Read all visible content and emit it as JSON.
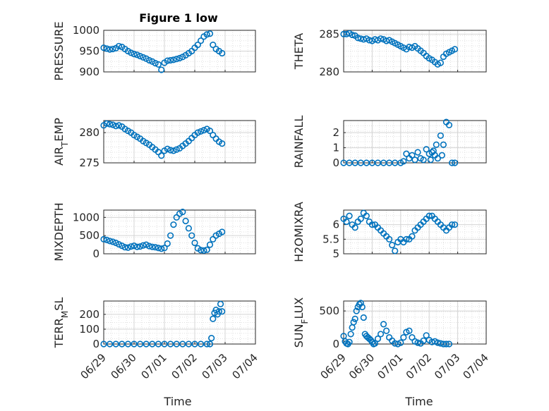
{
  "figure_title": "Figure 1 low",
  "colors": {
    "marker": "#0072BD",
    "axis": "#262626",
    "grid": "#d0d0d0"
  },
  "chart_data": [
    {
      "type": "scatter",
      "ylabel": "PRESSURE",
      "ylabel_html": "PRESSURE",
      "yticks": [
        900,
        950,
        1000
      ],
      "ylim": [
        900,
        1000
      ],
      "xticks": [],
      "xlim": [
        0,
        5
      ],
      "grid": true,
      "title": "Figure 1 low",
      "x": [
        0,
        0.1,
        0.2,
        0.3,
        0.4,
        0.5,
        0.6,
        0.7,
        0.8,
        0.9,
        1.0,
        1.1,
        1.2,
        1.3,
        1.4,
        1.5,
        1.6,
        1.7,
        1.8,
        1.9,
        2.0,
        2.1,
        2.2,
        2.3,
        2.4,
        2.5,
        2.6,
        2.7,
        2.8,
        2.9,
        3.0,
        3.1,
        3.2,
        3.3,
        3.4,
        3.5,
        3.6,
        3.7,
        3.8,
        3.9
      ],
      "y": [
        958,
        956,
        954,
        955,
        957,
        962,
        960,
        955,
        950,
        946,
        943,
        941,
        938,
        935,
        932,
        928,
        925,
        921,
        918,
        905,
        922,
        927,
        928,
        929,
        931,
        933,
        936,
        940,
        945,
        950,
        958,
        965,
        975,
        985,
        990,
        992,
        965,
        955,
        950,
        945
      ]
    },
    {
      "type": "scatter",
      "ylabel": "THETA",
      "yticks": [
        280,
        285
      ],
      "ylim": [
        280,
        285.5
      ],
      "xticks": [],
      "xlim": [
        0,
        5
      ],
      "grid": true,
      "x": [
        0,
        0.1,
        0.2,
        0.3,
        0.4,
        0.5,
        0.6,
        0.7,
        0.8,
        0.9,
        1.0,
        1.1,
        1.2,
        1.3,
        1.4,
        1.5,
        1.6,
        1.7,
        1.8,
        1.9,
        2.0,
        2.1,
        2.2,
        2.3,
        2.4,
        2.5,
        2.6,
        2.7,
        2.8,
        2.9,
        3.0,
        3.1,
        3.2,
        3.3,
        3.4,
        3.5,
        3.6,
        3.7,
        3.8,
        3.9
      ],
      "y": [
        285,
        285,
        285.1,
        284.9,
        284.8,
        284.5,
        284.4,
        284.3,
        284.4,
        284.2,
        284.1,
        284.3,
        284.2,
        284.4,
        284.3,
        284.1,
        284.2,
        284,
        283.8,
        283.6,
        283.4,
        283.2,
        283,
        283.3,
        283.2,
        283.4,
        283.1,
        282.8,
        282.5,
        282.1,
        281.8,
        281.6,
        281.3,
        281,
        281.2,
        282,
        282.4,
        282.6,
        282.8,
        283
      ]
    },
    {
      "type": "scatter",
      "ylabel": "AIR_TEMP",
      "ylabel_html": "AIR<tspan baseline-shift='sub' font-size='12'>T</tspan>EMP",
      "yticks": [
        275,
        280
      ],
      "ylim": [
        275,
        282
      ],
      "xticks": [],
      "xlim": [
        0,
        5
      ],
      "grid": true,
      "x": [
        0,
        0.1,
        0.2,
        0.3,
        0.4,
        0.5,
        0.6,
        0.7,
        0.8,
        0.9,
        1.0,
        1.1,
        1.2,
        1.3,
        1.4,
        1.5,
        1.6,
        1.7,
        1.8,
        1.9,
        2.0,
        2.1,
        2.2,
        2.3,
        2.4,
        2.5,
        2.6,
        2.7,
        2.8,
        2.9,
        3.0,
        3.1,
        3.2,
        3.3,
        3.4,
        3.5,
        3.6,
        3.7,
        3.8,
        3.9
      ],
      "y": [
        281.2,
        281.5,
        281.4,
        281.3,
        281.1,
        281.2,
        281,
        280.6,
        280.3,
        280,
        279.6,
        279.3,
        279,
        278.6,
        278.3,
        278,
        277.6,
        277.2,
        276.8,
        276.2,
        277,
        277.3,
        277.1,
        277,
        277.2,
        277.4,
        277.8,
        278.2,
        278.6,
        279.1,
        279.6,
        280,
        280.2,
        280.4,
        280.6,
        280.3,
        279.6,
        279,
        278.5,
        278.2
      ]
    },
    {
      "type": "scatter",
      "ylabel": "RAINFALL",
      "yticks": [
        0,
        1,
        2
      ],
      "ylim": [
        0,
        2.8
      ],
      "xticks": [],
      "xlim": [
        0,
        5
      ],
      "grid": true,
      "x": [
        0,
        0.2,
        0.4,
        0.6,
        0.8,
        1.0,
        1.2,
        1.4,
        1.6,
        1.8,
        2.0,
        2.1,
        2.2,
        2.3,
        2.4,
        2.5,
        2.6,
        2.7,
        2.8,
        2.9,
        3.0,
        3.05,
        3.1,
        3.15,
        3.2,
        3.25,
        3.3,
        3.4,
        3.45,
        3.5,
        3.6,
        3.7,
        3.8,
        3.9
      ],
      "y": [
        0,
        0,
        0,
        0,
        0,
        0,
        0,
        0,
        0,
        0,
        0,
        0.1,
        0.6,
        0.3,
        0.5,
        0.2,
        0.7,
        0.3,
        0.2,
        0.9,
        0.6,
        0.2,
        0.7,
        0.8,
        0.5,
        1.2,
        0.3,
        1.8,
        0.5,
        1.2,
        2.7,
        2.5,
        0,
        0
      ]
    },
    {
      "type": "scatter",
      "ylabel": "MIXDEPTH",
      "yticks": [
        0,
        500,
        1000
      ],
      "ylim": [
        0,
        1200
      ],
      "xticks": [],
      "xlim": [
        0,
        5
      ],
      "grid": true,
      "x": [
        0,
        0.1,
        0.2,
        0.3,
        0.4,
        0.5,
        0.6,
        0.7,
        0.8,
        0.9,
        1.0,
        1.1,
        1.2,
        1.3,
        1.4,
        1.5,
        1.6,
        1.7,
        1.8,
        1.9,
        2.0,
        2.1,
        2.2,
        2.3,
        2.4,
        2.5,
        2.6,
        2.7,
        2.8,
        2.9,
        3.0,
        3.1,
        3.2,
        3.3,
        3.4,
        3.5,
        3.6,
        3.7,
        3.8,
        3.9
      ],
      "y": [
        400,
        380,
        350,
        330,
        300,
        260,
        220,
        180,
        170,
        200,
        220,
        190,
        200,
        230,
        250,
        210,
        190,
        180,
        160,
        140,
        160,
        280,
        500,
        800,
        1000,
        1100,
        1150,
        900,
        700,
        500,
        300,
        150,
        100,
        90,
        110,
        250,
        400,
        500,
        550,
        600
      ]
    },
    {
      "type": "scatter",
      "ylabel": "H2OMIXRA",
      "yticks": [
        5,
        5.5,
        6
      ],
      "ylim": [
        5,
        6.5
      ],
      "xticks": [],
      "xlim": [
        0,
        5
      ],
      "grid": true,
      "x": [
        0,
        0.1,
        0.2,
        0.3,
        0.4,
        0.5,
        0.6,
        0.7,
        0.8,
        0.9,
        1.0,
        1.1,
        1.2,
        1.3,
        1.4,
        1.5,
        1.6,
        1.7,
        1.8,
        1.9,
        2.0,
        2.1,
        2.2,
        2.3,
        2.4,
        2.5,
        2.6,
        2.7,
        2.8,
        2.9,
        3.0,
        3.1,
        3.2,
        3.3,
        3.4,
        3.5,
        3.6,
        3.7,
        3.8,
        3.9
      ],
      "y": [
        6.2,
        6.1,
        6.3,
        6.0,
        5.9,
        6.1,
        6.2,
        6.4,
        6.3,
        6.1,
        6.0,
        6.0,
        5.9,
        5.8,
        5.7,
        5.6,
        5.5,
        5.3,
        5.1,
        5.4,
        5.5,
        5.4,
        5.5,
        5.5,
        5.6,
        5.8,
        5.9,
        6.0,
        6.1,
        6.2,
        6.3,
        6.3,
        6.2,
        6.1,
        6.0,
        5.9,
        5.8,
        5.9,
        6.0,
        6.0
      ]
    },
    {
      "type": "scatter",
      "ylabel": "TERR_MSL",
      "ylabel_html": "TERR<tspan baseline-shift='sub' font-size='12'>M</tspan>SL",
      "yticks": [
        0,
        100,
        200
      ],
      "ylim": [
        0,
        290
      ],
      "xticks": [
        "06/29",
        "06/30",
        "07/01",
        "07/02",
        "07/03",
        "07/04"
      ],
      "xlim": [
        0,
        5
      ],
      "grid": true,
      "x": [
        0,
        0.2,
        0.4,
        0.6,
        0.8,
        1.0,
        1.2,
        1.4,
        1.6,
        1.8,
        2.0,
        2.2,
        2.4,
        2.6,
        2.8,
        3.0,
        3.2,
        3.4,
        3.5,
        3.55,
        3.6,
        3.65,
        3.7,
        3.75,
        3.8,
        3.85,
        3.9
      ],
      "y": [
        0,
        0,
        0,
        0,
        0,
        0,
        0,
        0,
        0,
        0,
        0,
        0,
        0,
        0,
        0,
        0,
        0,
        0,
        0,
        40,
        170,
        210,
        230,
        200,
        220,
        270,
        220
      ]
    },
    {
      "type": "scatter",
      "ylabel": "SUN_FLUX",
      "ylabel_html": "SUN<tspan baseline-shift='sub' font-size='12'>F</tspan>LUX",
      "yticks": [
        0,
        500
      ],
      "ylim": [
        0,
        650
      ],
      "xticks": [
        "06/29",
        "06/30",
        "07/01",
        "07/02",
        "07/03",
        "07/04"
      ],
      "xlim": [
        0,
        5
      ],
      "grid": true,
      "x": [
        0,
        0.05,
        0.1,
        0.15,
        0.2,
        0.25,
        0.3,
        0.35,
        0.4,
        0.45,
        0.5,
        0.55,
        0.6,
        0.65,
        0.7,
        0.75,
        0.8,
        0.85,
        0.9,
        0.95,
        1.0,
        1.05,
        1.1,
        1.2,
        1.3,
        1.4,
        1.5,
        1.6,
        1.7,
        1.8,
        1.9,
        2.0,
        2.1,
        2.2,
        2.3,
        2.4,
        2.5,
        2.6,
        2.7,
        2.8,
        2.9,
        3.0,
        3.1,
        3.2,
        3.3,
        3.4,
        3.5,
        3.6,
        3.7
      ],
      "y": [
        120,
        40,
        10,
        0,
        30,
        150,
        250,
        330,
        380,
        500,
        560,
        600,
        620,
        560,
        400,
        150,
        120,
        100,
        80,
        60,
        30,
        0,
        10,
        80,
        150,
        300,
        200,
        100,
        50,
        10,
        0,
        20,
        100,
        180,
        200,
        100,
        40,
        20,
        10,
        50,
        130,
        60,
        30,
        40,
        20,
        10,
        0,
        0,
        0
      ]
    }
  ]
}
